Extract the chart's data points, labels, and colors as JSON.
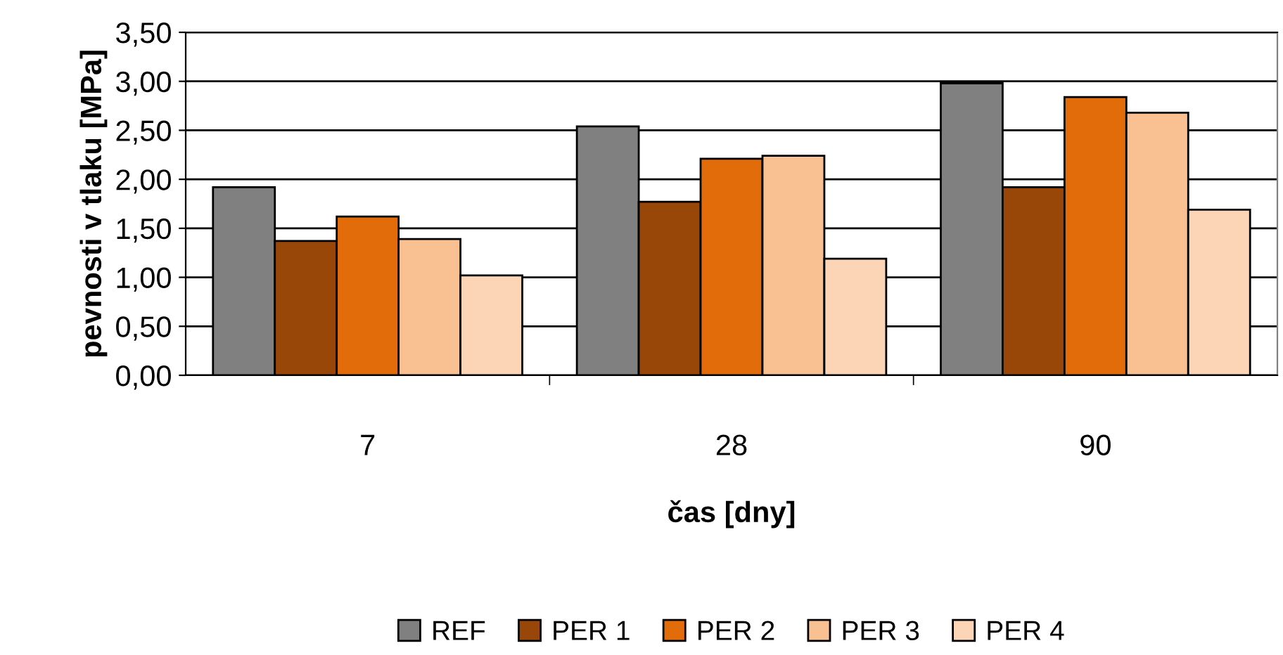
{
  "chart_data": {
    "type": "bar",
    "xlabel": "čas [dny]",
    "ylabel": "pevnosti v tlaku [MPa]",
    "categories": [
      "7",
      "28",
      "90"
    ],
    "series": [
      {
        "name": "REF",
        "color": "#808080",
        "values": [
          1.92,
          2.54,
          2.98
        ]
      },
      {
        "name": "PER 1",
        "color": "#994708",
        "values": [
          1.37,
          1.77,
          1.92
        ]
      },
      {
        "name": "PER 2",
        "color": "#e36c0a",
        "values": [
          1.62,
          2.21,
          2.84
        ]
      },
      {
        "name": "PER 3",
        "color": "#f9c091",
        "values": [
          1.39,
          2.24,
          2.68
        ]
      },
      {
        "name": "PER 4",
        "color": "#fbd5b5",
        "values": [
          1.02,
          1.19,
          1.69
        ]
      }
    ],
    "ylim": [
      0,
      3.5
    ],
    "yticks": [
      {
        "value": 0,
        "label": "0,00"
      },
      {
        "value": 0.5,
        "label": "0,50"
      },
      {
        "value": 1,
        "label": "1,00"
      },
      {
        "value": 1.5,
        "label": "1,50"
      },
      {
        "value": 2,
        "label": "2,00"
      },
      {
        "value": 2.5,
        "label": "2,50"
      },
      {
        "value": 3,
        "label": "3,00"
      },
      {
        "value": 3.5,
        "label": "3,50"
      }
    ],
    "grid": "y",
    "legend": "bottom"
  }
}
